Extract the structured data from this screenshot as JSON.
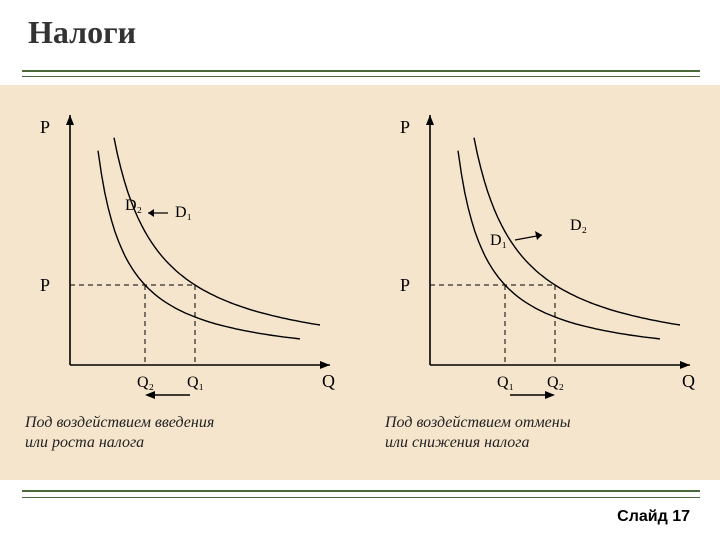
{
  "title": "Налоги",
  "title_fontsize": 32,
  "title_color": "#333333",
  "rule_color": "#4a6a3a",
  "footer": "Слайд 17",
  "footer_fontsize": 16,
  "footer_color": "#000000",
  "background_color": "#ffffff",
  "diagram_background": "#f5e5cc",
  "diagram": {
    "axis_color": "#000000",
    "curve_color": "#000000",
    "dash_color": "#000000",
    "label_font": "italic 16px Georgia, serif",
    "caption_font": "italic 16px Georgia, serif",
    "left": {
      "caption_line1": "Под воздействием введения",
      "caption_line2": "или роста налога",
      "P_label_top": "P",
      "P_label_mid": "P",
      "Q_label": "Q",
      "D1_label": "D₁",
      "D2_label": "D₂",
      "Q1_label": "Q₁",
      "Q2_label": "Q₂",
      "shift_arrow_dir": "left"
    },
    "right": {
      "caption_line1": "Под воздействием отмены",
      "caption_line2": "или снижения налога",
      "P_label_top": "P",
      "P_label_mid": "P",
      "Q_label": "Q",
      "D1_label": "D₁",
      "D2_label": "D₂",
      "Q1_label": "Q₁",
      "Q2_label": "Q₂",
      "shift_arrow_dir": "right"
    }
  }
}
